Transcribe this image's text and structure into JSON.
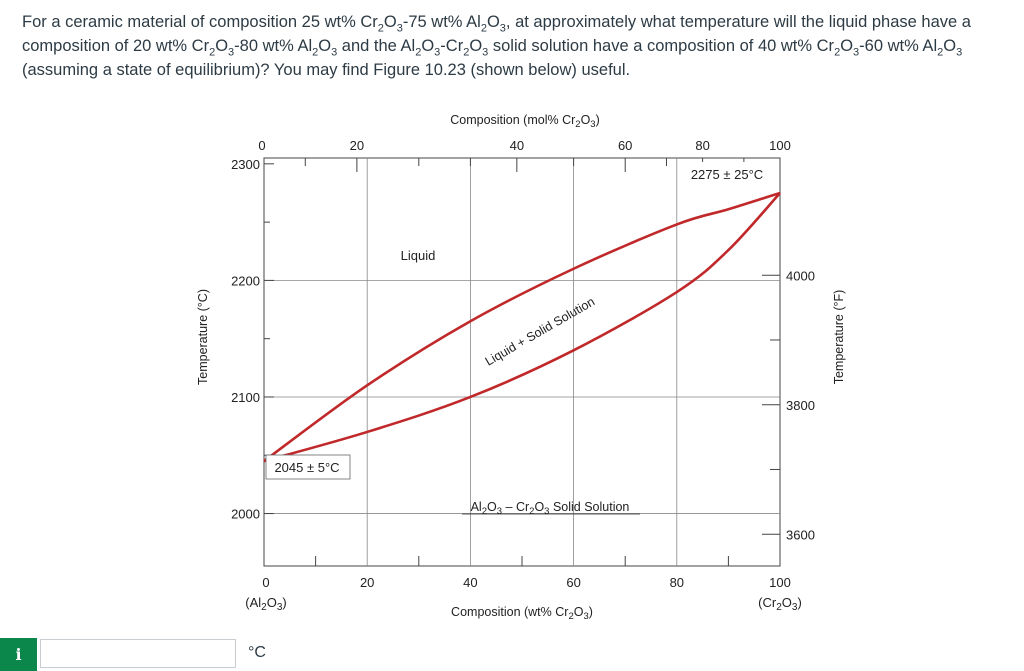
{
  "question": {
    "parts": [
      {
        "t": "For a ceramic material of composition 25 wt% Cr"
      },
      {
        "s": "2"
      },
      {
        "t": "O"
      },
      {
        "s": "3"
      },
      {
        "t": "-75 wt% Al"
      },
      {
        "s": "2"
      },
      {
        "t": "O"
      },
      {
        "s": "3"
      },
      {
        "t": ", at approximately what temperature will the liquid phase have a composition of 20 wt% Cr"
      },
      {
        "s": "2"
      },
      {
        "t": "O"
      },
      {
        "s": "3"
      },
      {
        "t": "-80 wt% Al"
      },
      {
        "s": "2"
      },
      {
        "t": "O"
      },
      {
        "s": "3"
      },
      {
        "t": " and the Al"
      },
      {
        "s": "2"
      },
      {
        "t": "O"
      },
      {
        "s": "3"
      },
      {
        "t": "-Cr"
      },
      {
        "s": "2"
      },
      {
        "t": "O"
      },
      {
        "s": "3"
      },
      {
        "t": " solid solution have a composition of 40 wt% Cr"
      },
      {
        "s": "2"
      },
      {
        "t": "O"
      },
      {
        "s": "3"
      },
      {
        "t": "-60 wt% Al"
      },
      {
        "s": "2"
      },
      {
        "t": "O"
      },
      {
        "s": "3"
      },
      {
        "t": " (assuming a state of equilibrium)? You may find Figure 10.23 (shown below) useful."
      }
    ]
  },
  "chart_data": {
    "type": "line",
    "title": "",
    "top_axis_label": "Composition (mol% Cr2O3)",
    "top_ticks": [
      "0",
      "20",
      "40",
      "60",
      "80",
      "100"
    ],
    "top_tick_values": [
      0,
      20,
      40,
      60,
      80,
      100
    ],
    "xlabel": "Composition (wt% Cr2O3)",
    "x_ticks": [
      "0",
      "20",
      "40",
      "60",
      "80",
      "100"
    ],
    "x_tick_values": [
      0,
      20,
      40,
      60,
      80,
      100
    ],
    "x_end_labels": {
      "left": "(Al2O3)",
      "right": "(Cr2O3)"
    },
    "xlim": [
      0,
      100
    ],
    "ylabel": "Temperature (°C)",
    "y_ticks": [
      2000,
      2100,
      2200,
      2300
    ],
    "ylim": [
      1955,
      2305
    ],
    "right_axis_label": "Temperature (°F)",
    "right_ticks": [
      {
        "label": "3600",
        "temp_c": 1982.2
      },
      {
        "label": "3800",
        "temp_c": 2093.3
      },
      {
        "label": "4000",
        "temp_c": 2204.4
      }
    ],
    "grid": true,
    "series": [
      {
        "name": "liquidus",
        "color": "#c0282a",
        "x": [
          0,
          20,
          40,
          60,
          80,
          90,
          100
        ],
        "y": [
          2045,
          2110,
          2165,
          2210,
          2248,
          2261,
          2275
        ]
      },
      {
        "name": "solidus",
        "color": "#c0282a",
        "x": [
          0,
          20,
          40,
          60,
          80,
          90,
          100
        ],
        "y": [
          2045,
          2070,
          2100,
          2140,
          2190,
          2226,
          2275
        ]
      }
    ],
    "annotations": {
      "liquid": "Liquid",
      "two_phase": "Liquid + Solid Solution",
      "solid": "Al2O3 – Cr2O3 Solid Solution",
      "left_point": "2045 ± 5°C",
      "right_point": "2275 ± 25°C"
    }
  },
  "answer": {
    "value": "",
    "placeholder": "",
    "unit": "°C",
    "info_symbol": "i"
  }
}
